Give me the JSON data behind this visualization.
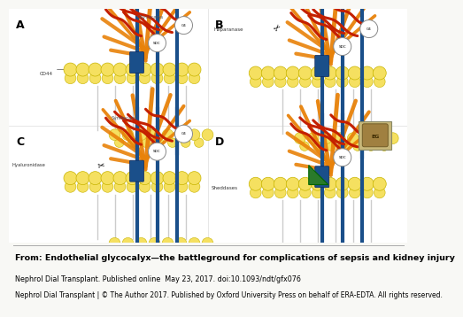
{
  "figure_bg": "#f8f8f5",
  "orange_color": "#E8820A",
  "red_color": "#C42000",
  "blue_color": "#1A4F8A",
  "yellow_color": "#F5E060",
  "yellow_border": "#C8B400",
  "green_color": "#2A7A2A",
  "title_line1": "From: Endothelial glycocalyx—the battleground for complications of sepsis and kidney injury",
  "title_line2": "Nephrol Dial Transplant. Published online  May 23, 2017. doi:10.1093/ndt/gfx076",
  "title_line3": "Nephrol Dial Transplant | © The Author 2017. Published by Oxford University Press on behalf of ERA-EDTA. All rights reserved."
}
